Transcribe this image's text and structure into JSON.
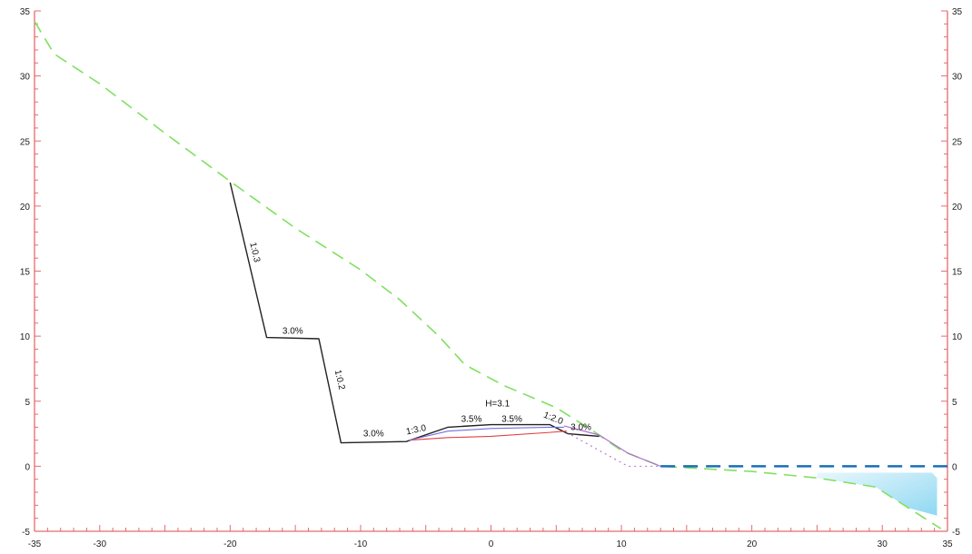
{
  "chart_data": {
    "type": "cross-section",
    "title": "",
    "xlabel": "",
    "ylabel": "",
    "xlim": [
      -35,
      35
    ],
    "ylim": [
      -5,
      35
    ],
    "x_ticks": [
      "-35",
      "-30",
      "-20",
      "-10",
      "0",
      "10",
      "20",
      "30",
      "35"
    ],
    "x_tick_values": [
      -35,
      -30,
      -20,
      -10,
      0,
      10,
      20,
      30,
      35
    ],
    "y_ticks": [
      "35",
      "30",
      "25",
      "20",
      "15",
      "10",
      "5",
      "0",
      "-5"
    ],
    "y_tick_values": [
      35,
      30,
      25,
      20,
      15,
      10,
      5,
      0,
      -5
    ],
    "colors": {
      "axis": "#e86a6a",
      "ground": "#80e060",
      "design": "#222222",
      "subgrade": "#e04040",
      "pavement": "#7070e0",
      "slope_fill": "#b070d0",
      "water_line": "#1a6fb8",
      "water_fill": "#bfe8f8"
    },
    "series": [
      {
        "key": "ground",
        "style": "dashed",
        "points": [
          [
            -35,
            34.2
          ],
          [
            -33.5,
            31.7
          ],
          [
            -30,
            29.4
          ],
          [
            -25,
            25.6
          ],
          [
            -20,
            21.9
          ],
          [
            -15,
            18.3
          ],
          [
            -10,
            15.1
          ],
          [
            -7,
            12.8
          ],
          [
            -4,
            10.0
          ],
          [
            -2,
            7.8
          ],
          [
            1,
            6.2
          ],
          [
            5,
            4.5
          ],
          [
            8,
            2.6
          ],
          [
            10,
            1.2
          ],
          [
            13,
            0
          ],
          [
            20,
            -0.4
          ],
          [
            25,
            -0.9
          ],
          [
            29.5,
            -1.6
          ],
          [
            32,
            -3.2
          ],
          [
            34.5,
            -4.8
          ]
        ]
      },
      {
        "key": "design",
        "style": "solid",
        "points": [
          [
            -20,
            21.8
          ],
          [
            -17.2,
            9.9
          ],
          [
            -13.2,
            9.8
          ],
          [
            -11.5,
            1.8
          ],
          [
            -6.5,
            1.9
          ],
          [
            -3.3,
            3.0
          ],
          [
            0,
            3.2
          ],
          [
            4.5,
            3.2
          ],
          [
            5.9,
            2.5
          ],
          [
            8.3,
            2.3
          ]
        ]
      },
      {
        "key": "subgrade",
        "style": "solid",
        "points": [
          [
            -6.3,
            2.0
          ],
          [
            -3.3,
            2.2
          ],
          [
            0,
            2.3
          ],
          [
            4.5,
            2.6
          ],
          [
            5.8,
            2.7
          ]
        ]
      },
      {
        "key": "pavement",
        "style": "solid",
        "points": [
          [
            -6.3,
            2.0
          ],
          [
            -3.3,
            2.7
          ],
          [
            0,
            2.9
          ],
          [
            4.5,
            3.0
          ],
          [
            5.6,
            3.0
          ]
        ]
      },
      {
        "key": "slope_fill",
        "style": "solid",
        "points": [
          [
            5.6,
            3.1
          ],
          [
            8.3,
            2.4
          ],
          [
            10.5,
            1.0
          ],
          [
            13,
            0
          ]
        ]
      },
      {
        "key": "subgrade_extension",
        "style": "dotted",
        "points": [
          [
            5.8,
            2.6
          ],
          [
            8.5,
            1.1
          ],
          [
            10.5,
            0
          ],
          [
            13,
            0
          ]
        ]
      },
      {
        "key": "water_level",
        "style": "dashed",
        "points": [
          [
            13,
            0
          ],
          [
            35,
            0
          ]
        ]
      }
    ],
    "water_area": [
      [
        25,
        -0.5
      ],
      [
        33.8,
        -0.5
      ],
      [
        34.2,
        -0.9
      ],
      [
        34.2,
        -3.8
      ],
      [
        32,
        -3.2
      ],
      [
        29.5,
        -1.6
      ],
      [
        25,
        -0.9
      ]
    ],
    "annotations": [
      {
        "text": "1:0.3",
        "x": -18.3,
        "y": 16.4,
        "rotate": 77
      },
      {
        "text": "3.0%",
        "x": -15.2,
        "y": 10.2,
        "rotate": 0
      },
      {
        "text": "1:0.2",
        "x": -11.8,
        "y": 6.6,
        "rotate": 77
      },
      {
        "text": "3.0%",
        "x": -9.0,
        "y": 2.3,
        "rotate": 0
      },
      {
        "text": "1:3.0",
        "x": -5.7,
        "y": 2.6,
        "rotate": -12
      },
      {
        "text": "3.5%",
        "x": -1.5,
        "y": 3.4,
        "rotate": 0
      },
      {
        "text": "3.5%",
        "x": 1.6,
        "y": 3.4,
        "rotate": 0
      },
      {
        "text": "H=3.1",
        "x": 0.5,
        "y": 4.6,
        "rotate": 0
      },
      {
        "text": "1:2.0",
        "x": 4.7,
        "y": 3.5,
        "rotate": 22
      },
      {
        "text": "3.0%",
        "x": 6.9,
        "y": 2.8,
        "rotate": 0
      }
    ]
  }
}
